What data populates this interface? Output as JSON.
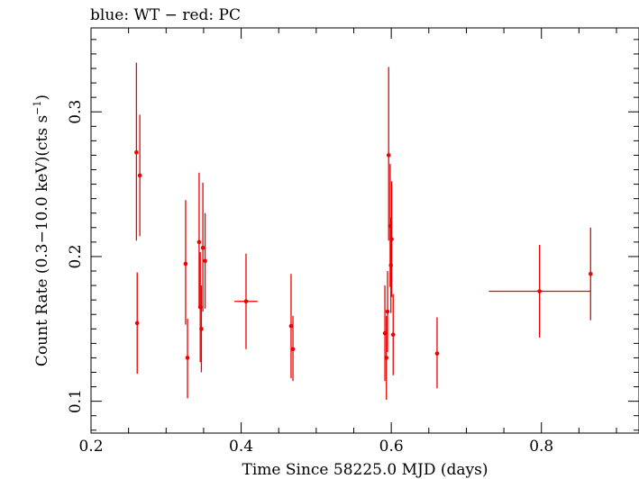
{
  "chart_data": {
    "type": "scatter",
    "title": "blue: WT − red: PC",
    "xlabel": "Time Since 58225.0 MJD (days)",
    "ylabel": "Count Rate (0.3−10.0 keV)(cts s",
    "ylabel_sup": "−1",
    "ylabel_end": ")",
    "xlim": [
      0.2,
      0.93
    ],
    "ylim": [
      0.078,
      0.358
    ],
    "xticks": [
      {
        "v": 0.2,
        "label": "0.2"
      },
      {
        "v": 0.4,
        "label": "0.4"
      },
      {
        "v": 0.6,
        "label": "0.6"
      },
      {
        "v": 0.8,
        "label": "0.8"
      }
    ],
    "yticks": [
      {
        "v": 0.1,
        "label": "0.1"
      },
      {
        "v": 0.2,
        "label": "0.2"
      },
      {
        "v": 0.3,
        "label": "0.3"
      }
    ],
    "grid": false,
    "series": [
      {
        "color": "#ee0000",
        "points": [
          {
            "x": 0.2605,
            "y": 0.272,
            "xerr": 0.0015,
            "ylo": 0.211,
            "yhi": 0.334
          },
          {
            "x": 0.2615,
            "y": 0.154,
            "xerr": 0.0015,
            "ylo": 0.119,
            "yhi": 0.189
          },
          {
            "x": 0.265,
            "y": 0.256,
            "xerr": 0.0015,
            "ylo": 0.214,
            "yhi": 0.298
          },
          {
            "x": 0.326,
            "y": 0.195,
            "xerr": 0.0015,
            "ylo": 0.153,
            "yhi": 0.239
          },
          {
            "x": 0.3285,
            "y": 0.13,
            "xerr": 0.0015,
            "ylo": 0.102,
            "yhi": 0.157
          },
          {
            "x": 0.344,
            "y": 0.21,
            "xerr": 0.0015,
            "ylo": 0.165,
            "yhi": 0.258
          },
          {
            "x": 0.3455,
            "y": 0.165,
            "xerr": 0.0015,
            "ylo": 0.127,
            "yhi": 0.203
          },
          {
            "x": 0.347,
            "y": 0.15,
            "xerr": 0.0015,
            "ylo": 0.12,
            "yhi": 0.18
          },
          {
            "x": 0.349,
            "y": 0.206,
            "xerr": 0.0015,
            "ylo": 0.162,
            "yhi": 0.251
          },
          {
            "x": 0.352,
            "y": 0.197,
            "xerr": 0.0015,
            "ylo": 0.164,
            "yhi": 0.23
          },
          {
            "x": 0.4065,
            "y": 0.169,
            "xerr": 0.0155,
            "ylo": 0.136,
            "yhi": 0.202
          },
          {
            "x": 0.4665,
            "y": 0.152,
            "xerr": 0.0015,
            "ylo": 0.116,
            "yhi": 0.188
          },
          {
            "x": 0.469,
            "y": 0.136,
            "xerr": 0.0015,
            "ylo": 0.114,
            "yhi": 0.159
          },
          {
            "x": 0.5915,
            "y": 0.147,
            "xerr": 0.0015,
            "ylo": 0.114,
            "yhi": 0.18
          },
          {
            "x": 0.5935,
            "y": 0.13,
            "xerr": 0.0015,
            "ylo": 0.101,
            "yhi": 0.159
          },
          {
            "x": 0.595,
            "y": 0.162,
            "xerr": 0.0015,
            "ylo": 0.134,
            "yhi": 0.19
          },
          {
            "x": 0.5965,
            "y": 0.27,
            "xerr": 0.0015,
            "ylo": 0.211,
            "yhi": 0.331
          },
          {
            "x": 0.5985,
            "y": 0.221,
            "xerr": 0.0015,
            "ylo": 0.179,
            "yhi": 0.264
          },
          {
            "x": 0.5995,
            "y": 0.194,
            "xerr": 0.0015,
            "ylo": 0.161,
            "yhi": 0.227
          },
          {
            "x": 0.6005,
            "y": 0.212,
            "xerr": 0.0015,
            "ylo": 0.172,
            "yhi": 0.252
          },
          {
            "x": 0.6025,
            "y": 0.146,
            "xerr": 0.0015,
            "ylo": 0.118,
            "yhi": 0.174
          },
          {
            "x": 0.661,
            "y": 0.133,
            "xerr": 0.0015,
            "ylo": 0.109,
            "yhi": 0.158
          },
          {
            "x": 0.7975,
            "y": 0.176,
            "xerr": 0.0675,
            "ylo": 0.144,
            "yhi": 0.208
          },
          {
            "x": 0.8655,
            "y": 0.188,
            "xerr": 0.0015,
            "ylo": 0.156,
            "yhi": 0.22
          }
        ]
      }
    ]
  }
}
